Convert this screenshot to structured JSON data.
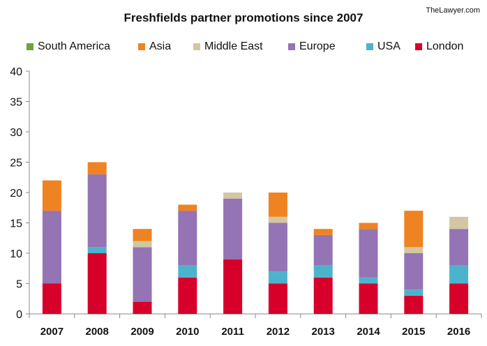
{
  "source": "TheLawyer.com",
  "chart_data": {
    "type": "bar",
    "stacked": true,
    "title": "Freshfields partner promotions since 2007",
    "xlabel": "",
    "ylabel": "",
    "ylim": [
      0,
      40
    ],
    "yticks": [
      0,
      5,
      10,
      15,
      20,
      25,
      30,
      35,
      40
    ],
    "grid": false,
    "legend_position": "top",
    "categories": [
      "2007",
      "2008",
      "2009",
      "2010",
      "2011",
      "2012",
      "2013",
      "2014",
      "2015",
      "2016"
    ],
    "legend_order": [
      "South America",
      "Asia",
      "Middle East",
      "Europe",
      "USA",
      "London"
    ],
    "series": [
      {
        "name": "London",
        "color": "#d7002b",
        "values": [
          5,
          10,
          2,
          6,
          9,
          5,
          6,
          5,
          3,
          5
        ]
      },
      {
        "name": "USA",
        "color": "#4db3cc",
        "values": [
          0,
          1,
          0,
          2,
          0,
          2,
          2,
          1,
          1,
          3
        ]
      },
      {
        "name": "Europe",
        "color": "#9474b4",
        "values": [
          12,
          12,
          9,
          9,
          10,
          8,
          5,
          8,
          6,
          6
        ]
      },
      {
        "name": "Middle East",
        "color": "#d2c7a2",
        "values": [
          0,
          0,
          1,
          0,
          1,
          1,
          0,
          0,
          1,
          2
        ]
      },
      {
        "name": "Asia",
        "color": "#ef8321",
        "values": [
          5,
          2,
          2,
          1,
          0,
          4,
          1,
          1,
          6,
          0
        ]
      },
      {
        "name": "South America",
        "color": "#71a03d",
        "values": [
          0,
          0,
          0,
          0,
          0,
          0,
          0,
          0,
          0,
          0
        ]
      }
    ]
  }
}
